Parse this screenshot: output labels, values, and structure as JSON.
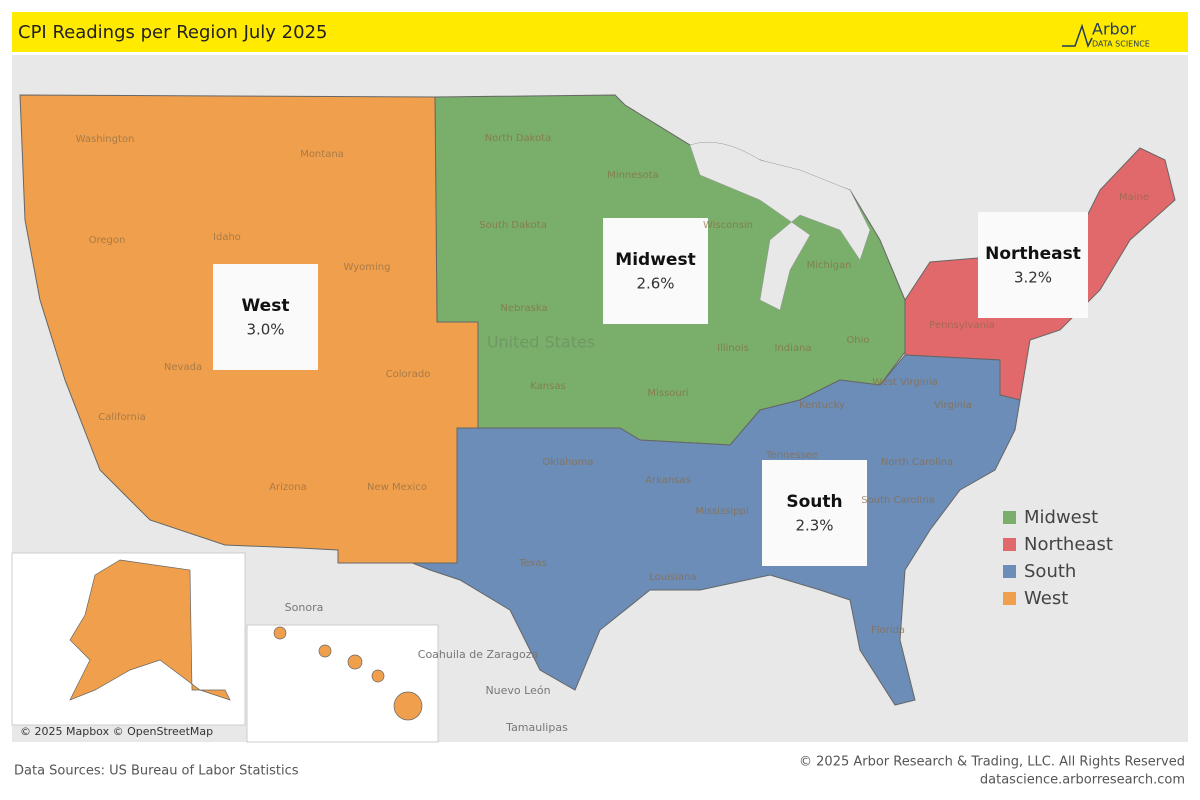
{
  "header": {
    "title": "CPI Readings per Region July 2025",
    "logo": {
      "name": "Arbor",
      "tagline": "DATA SCIENCE"
    }
  },
  "regions": [
    {
      "name": "Midwest",
      "value": "2.6%",
      "color": "#79ae6b"
    },
    {
      "name": "Northeast",
      "value": "3.2%",
      "color": "#e1696b"
    },
    {
      "name": "South",
      "value": "2.3%",
      "color": "#6b8db7"
    },
    {
      "name": "West",
      "value": "3.0%",
      "color": "#f0a04d"
    }
  ],
  "states": [
    "Washington",
    "Montana",
    "Oregon",
    "Idaho",
    "Wyoming",
    "Nevada",
    "California",
    "Colorado",
    "Arizona",
    "New Mexico",
    "North Dakota",
    "South Dakota",
    "Nebraska",
    "Kansas",
    "Minnesota",
    "Wisconsin",
    "Michigan",
    "Illinois",
    "Indiana",
    "Ohio",
    "Missouri",
    "Oklahoma",
    "Texas",
    "Arkansas",
    "Louisiana",
    "Mississippi",
    "Tennessee",
    "Kentucky",
    "West Virginia",
    "Virginia",
    "North Carolina",
    "South Carolina",
    "Florida",
    "Pennsylvania",
    "Maine"
  ],
  "places": [
    "United States",
    "Sonora",
    "Coahuila de Zaragoza",
    "Nuevo León",
    "Tamaulipas"
  ],
  "map_attribution": "© 2025 Mapbox © OpenStreetMap",
  "footer": {
    "source": "Data Sources: US Bureau of Labor Statistics",
    "copyright": "© 2025 Arbor Research & Trading, LLC. All Rights Reserved",
    "url": "datascience.arborresearch.com"
  }
}
